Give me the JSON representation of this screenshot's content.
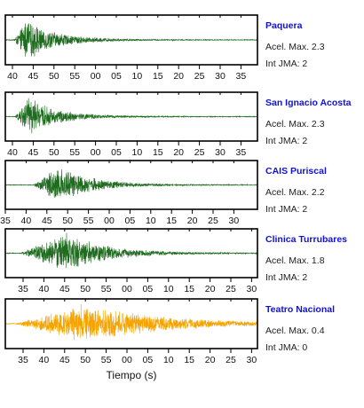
{
  "chart_data": {
    "type": "line",
    "xlabel": "Tiempo (s)",
    "panels": [
      {
        "station": "Paquera",
        "accel_label": "Acel. Max. 2.3",
        "jma_label": "Int JMA: 2",
        "color": "#1f6b1f",
        "ticks": [
          "40",
          "45",
          "50",
          "55",
          "00",
          "05",
          "10",
          "15",
          "20",
          "25",
          "30",
          "35"
        ],
        "peak_s": 4.2,
        "peak_amp": 1.0,
        "rise": 2.5,
        "decay": 6.0
      },
      {
        "station": "San Ignacio Acosta",
        "accel_label": "Acel. Max. 2.3",
        "jma_label": "Int JMA: 2",
        "color": "#1f6b1f",
        "ticks": [
          "40",
          "45",
          "50",
          "55",
          "00",
          "05",
          "10",
          "15",
          "20",
          "25",
          "30",
          "35"
        ],
        "peak_s": 4.5,
        "peak_amp": 0.95,
        "rise": 2.5,
        "decay": 6.0
      },
      {
        "station": "CAIS Puriscal",
        "accel_label": "Acel. Max. 2.2",
        "jma_label": "Int JMA: 2",
        "color": "#1f6b1f",
        "ticks": [
          "35",
          "40",
          "45",
          "50",
          "55",
          "00",
          "05",
          "10",
          "15",
          "20",
          "25",
          "30"
        ],
        "peak_s": 10.5,
        "peak_amp": 0.95,
        "rise": 5.0,
        "decay": 6.5
      },
      {
        "station": "Clinica Turrubares",
        "accel_label": "Acel. Max. 1.8",
        "jma_label": "Int JMA: 2",
        "color": "#1f6b1f",
        "ticks": [
          "35",
          "40",
          "45",
          "50",
          "55",
          "00",
          "05",
          "10",
          "15",
          "20",
          "25",
          "30"
        ],
        "peak_s": 12.0,
        "peak_amp": 1.0,
        "rise": 9.0,
        "decay": 8.0
      },
      {
        "station": "Teatro Nacional",
        "accel_label": "Acel. Max. 0.4",
        "jma_label": "Int JMA: 0",
        "color": "#f5a300",
        "ticks": [
          "35",
          "40",
          "45",
          "50",
          "55",
          "00",
          "05",
          "10",
          "15",
          "20",
          "25",
          "30"
        ],
        "peak_s": 16.0,
        "peak_amp": 0.95,
        "rise": 14.0,
        "decay": 15.0
      }
    ]
  }
}
